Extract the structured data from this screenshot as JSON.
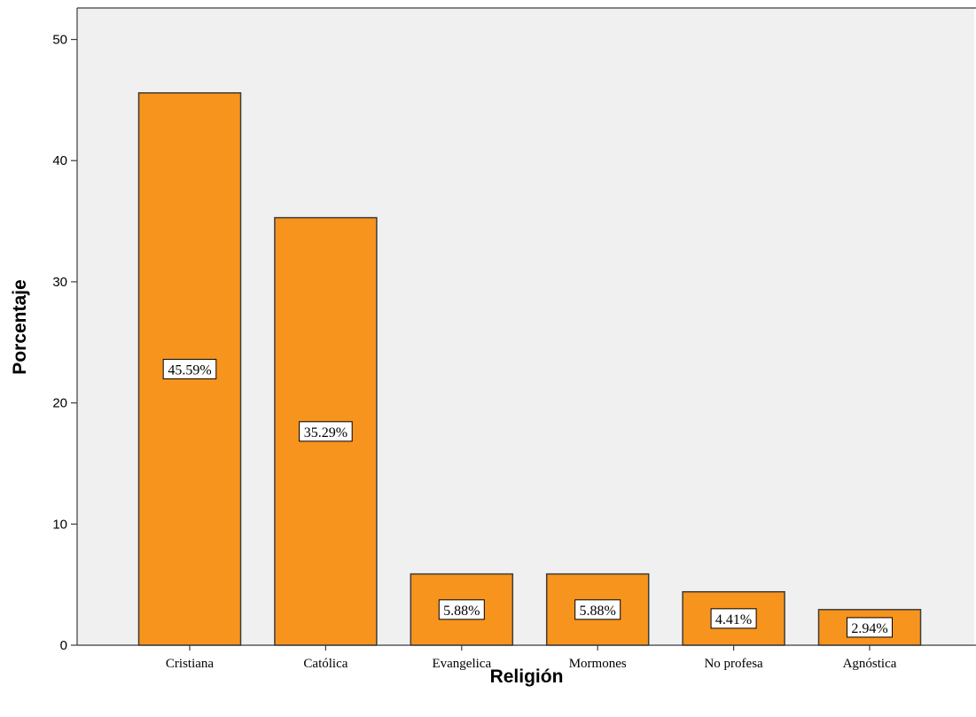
{
  "chart_data": {
    "type": "bar",
    "xlabel": "Religión",
    "ylabel": "Porcentaje",
    "categories": [
      "Cristiana",
      "Católica",
      "Evangelica",
      "Mormones",
      "No profesa",
      "Agnóstica"
    ],
    "values": [
      45.59,
      35.29,
      5.88,
      5.88,
      4.41,
      2.94
    ],
    "data_labels": [
      "45.59%",
      "35.29%",
      "5.88%",
      "5.88%",
      "4.41%",
      "2.94%"
    ],
    "yticks": [
      0,
      10,
      20,
      30,
      40,
      50
    ],
    "ylim": [
      0,
      52.6
    ],
    "grid": false,
    "legend": "none",
    "colors": {
      "bar_fill": "#F7941D",
      "bar_stroke": "#3C3C3C",
      "plot_background": "#F0F0F0",
      "axis": "#3C3C3C"
    }
  }
}
